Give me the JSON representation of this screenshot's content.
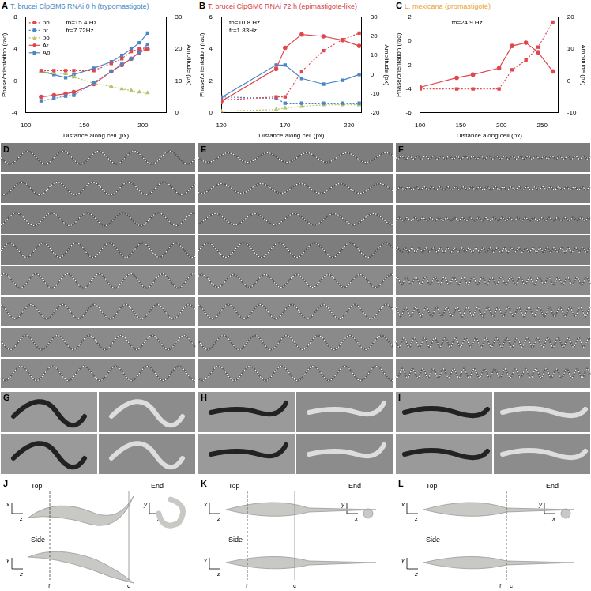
{
  "chart_data": [
    {
      "type": "line",
      "label": "A",
      "title": "T. brucei ClpGM6 RNAi 0 h (trypomastigote)",
      "color": "#4a86c5",
      "x_label": "Distance along cell (px)",
      "y_label": "Phase/orientation (rad)",
      "y2_label": "Amplitude (px)",
      "annotations": [
        "fb=15.4 Hz",
        "fr=7.72Hz"
      ],
      "legend": "upper left",
      "grid": false,
      "x": [
        113,
        124,
        134,
        141,
        158,
        173,
        182,
        190,
        197,
        204
      ],
      "xlim": [
        100,
        220
      ],
      "xticks": [
        100,
        150,
        200
      ],
      "ylim": [
        -4,
        8
      ],
      "yticks": [
        -4,
        0,
        4,
        8
      ],
      "y2lim": [
        0,
        30
      ],
      "y2ticks": [
        0,
        10,
        20,
        30
      ],
      "series": [
        {
          "name": "pb",
          "color": "#e0474c",
          "marker": "square",
          "line_style": "dotted",
          "values": [
            1.3,
            1.3,
            1.3,
            1.3,
            1.3,
            2.2,
            2.8,
            3.7,
            4.0,
            4.0
          ]
        },
        {
          "name": "pr",
          "color": "#4a86c5",
          "marker": "square",
          "line_style": "dotted",
          "values": [
            -2.5,
            -2.2,
            -1.9,
            -1.8,
            -0.2,
            1.2,
            2.1,
            2.8,
            3.6,
            4.6
          ]
        },
        {
          "name": "po",
          "color": "#b8c46a",
          "marker": "triangle",
          "line_style": "dotted",
          "values": [
            1.2,
            1.0,
            0.9,
            0.5,
            -0.3,
            -0.7,
            -1.0,
            -1.2,
            -1.4,
            -1.5
          ]
        },
        {
          "name": "Ar",
          "color": "#e0474c",
          "marker": "circle",
          "line_style": "solid",
          "axis": "y2",
          "values": [
            5,
            5.5,
            6,
            6.5,
            9,
            13,
            15,
            17,
            19,
            20
          ]
        },
        {
          "name": "Ab",
          "color": "#4a86c5",
          "marker": "square",
          "line_style": "solid",
          "axis": "y2",
          "values": [
            13,
            12,
            11,
            12,
            14,
            16,
            18,
            20,
            22,
            25
          ]
        }
      ]
    },
    {
      "type": "line",
      "label": "B",
      "title": "T. brucei ClpGM6 RNAi 72 h (epimastigote-like)",
      "color": "#d6404a",
      "x_label": "Distance along cell (px)",
      "y_label": "Phase/orientation (rad)",
      "y2_label": "Amplitude (px)",
      "annotations": [
        "fb=10.8 Hz",
        "fr=1.83Hz"
      ],
      "grid": false,
      "x": [
        120,
        163,
        170,
        183,
        200,
        215,
        228
      ],
      "xlim": [
        120,
        230
      ],
      "xticks": [
        120,
        170,
        220
      ],
      "ylim": [
        0,
        6
      ],
      "yticks": [
        0,
        2,
        4,
        6
      ],
      "y2lim": [
        -20,
        30
      ],
      "y2ticks": [
        -20,
        -10,
        0,
        10,
        20,
        30
      ],
      "series": [
        {
          "color": "#e0474c",
          "marker": "square",
          "line_style": "dotted",
          "values": [
            0.8,
            1.0,
            1.0,
            2.6,
            3.9,
            4.6,
            5.0
          ]
        },
        {
          "color": "#4a86c5",
          "marker": "square",
          "line_style": "dotted",
          "values": [
            1.0,
            0.9,
            0.6,
            0.6,
            0.6,
            0.6,
            0.6
          ]
        },
        {
          "color": "#b8c46a",
          "marker": "triangle",
          "line_style": "dotted",
          "values": [
            0.1,
            0.2,
            0.3,
            0.4,
            0.5,
            0.5,
            0.5
          ]
        },
        {
          "color": "#e0474c",
          "marker": "circle",
          "line_style": "solid",
          "axis": "y2",
          "values": [
            -14,
            3,
            14,
            21,
            20,
            18,
            15
          ]
        },
        {
          "color": "#4a86c5",
          "marker": "square",
          "line_style": "solid",
          "axis": "y2",
          "values": [
            -12,
            5,
            5,
            -2,
            -5,
            -3,
            0
          ]
        }
      ]
    },
    {
      "type": "line",
      "label": "C",
      "title": "L. mexicana (promastigote)",
      "color": "#e8a23a",
      "x_label": "Distance along cell (px)",
      "y_label": "Phase/orientation (rad)",
      "y2_label": "Amplitude (px)",
      "annotations": [
        "fb=24.9 Hz"
      ],
      "grid": false,
      "x": [
        100,
        145,
        165,
        197,
        213,
        230,
        245,
        263
      ],
      "xlim": [
        100,
        270
      ],
      "xticks": [
        100,
        150,
        200,
        250
      ],
      "ylim": [
        -6,
        2
      ],
      "yticks": [
        -6,
        -4,
        -2,
        0,
        2
      ],
      "y2lim": [
        -10,
        20
      ],
      "y2ticks": [
        -10,
        0,
        10,
        20
      ],
      "series": [
        {
          "color": "#e0474c",
          "marker": "square",
          "line_style": "dotted",
          "values": [
            -4,
            -4,
            -4,
            -4,
            -2.4,
            -1.6,
            -0.5,
            1.6
          ]
        },
        {
          "color": "#e0474c",
          "marker": "circle",
          "line_style": "solid",
          "axis": "y2",
          "values": [
            -2,
            1,
            2,
            4,
            11,
            12,
            9,
            3
          ]
        }
      ]
    }
  ],
  "image_panels": {
    "strips": [
      {
        "label": "D"
      },
      {
        "label": "E"
      },
      {
        "label": "F"
      }
    ],
    "renders": [
      {
        "label": "G"
      },
      {
        "label": "H"
      },
      {
        "label": "I"
      }
    ],
    "models": [
      {
        "label": "J",
        "views": [
          "Top",
          "Side",
          "End"
        ],
        "markers": [
          "f",
          "c"
        ],
        "axes": {
          "top": [
            "x",
            "z"
          ],
          "side": [
            "y",
            "z"
          ],
          "end": [
            "y",
            "x"
          ]
        }
      },
      {
        "label": "K",
        "views": [
          "Top",
          "Side",
          "End"
        ],
        "markers": [
          "f",
          "c"
        ],
        "axes": {
          "top": [
            "x",
            "z"
          ],
          "side": [
            "y",
            "z"
          ],
          "end": [
            "y",
            "x"
          ]
        }
      },
      {
        "label": "L",
        "views": [
          "Top",
          "Side",
          "End"
        ],
        "markers": [
          "f",
          "c"
        ],
        "axes": {
          "top": [
            "x",
            "z"
          ],
          "side": [
            "y",
            "z"
          ],
          "end": [
            "y",
            "x"
          ]
        }
      }
    ]
  }
}
